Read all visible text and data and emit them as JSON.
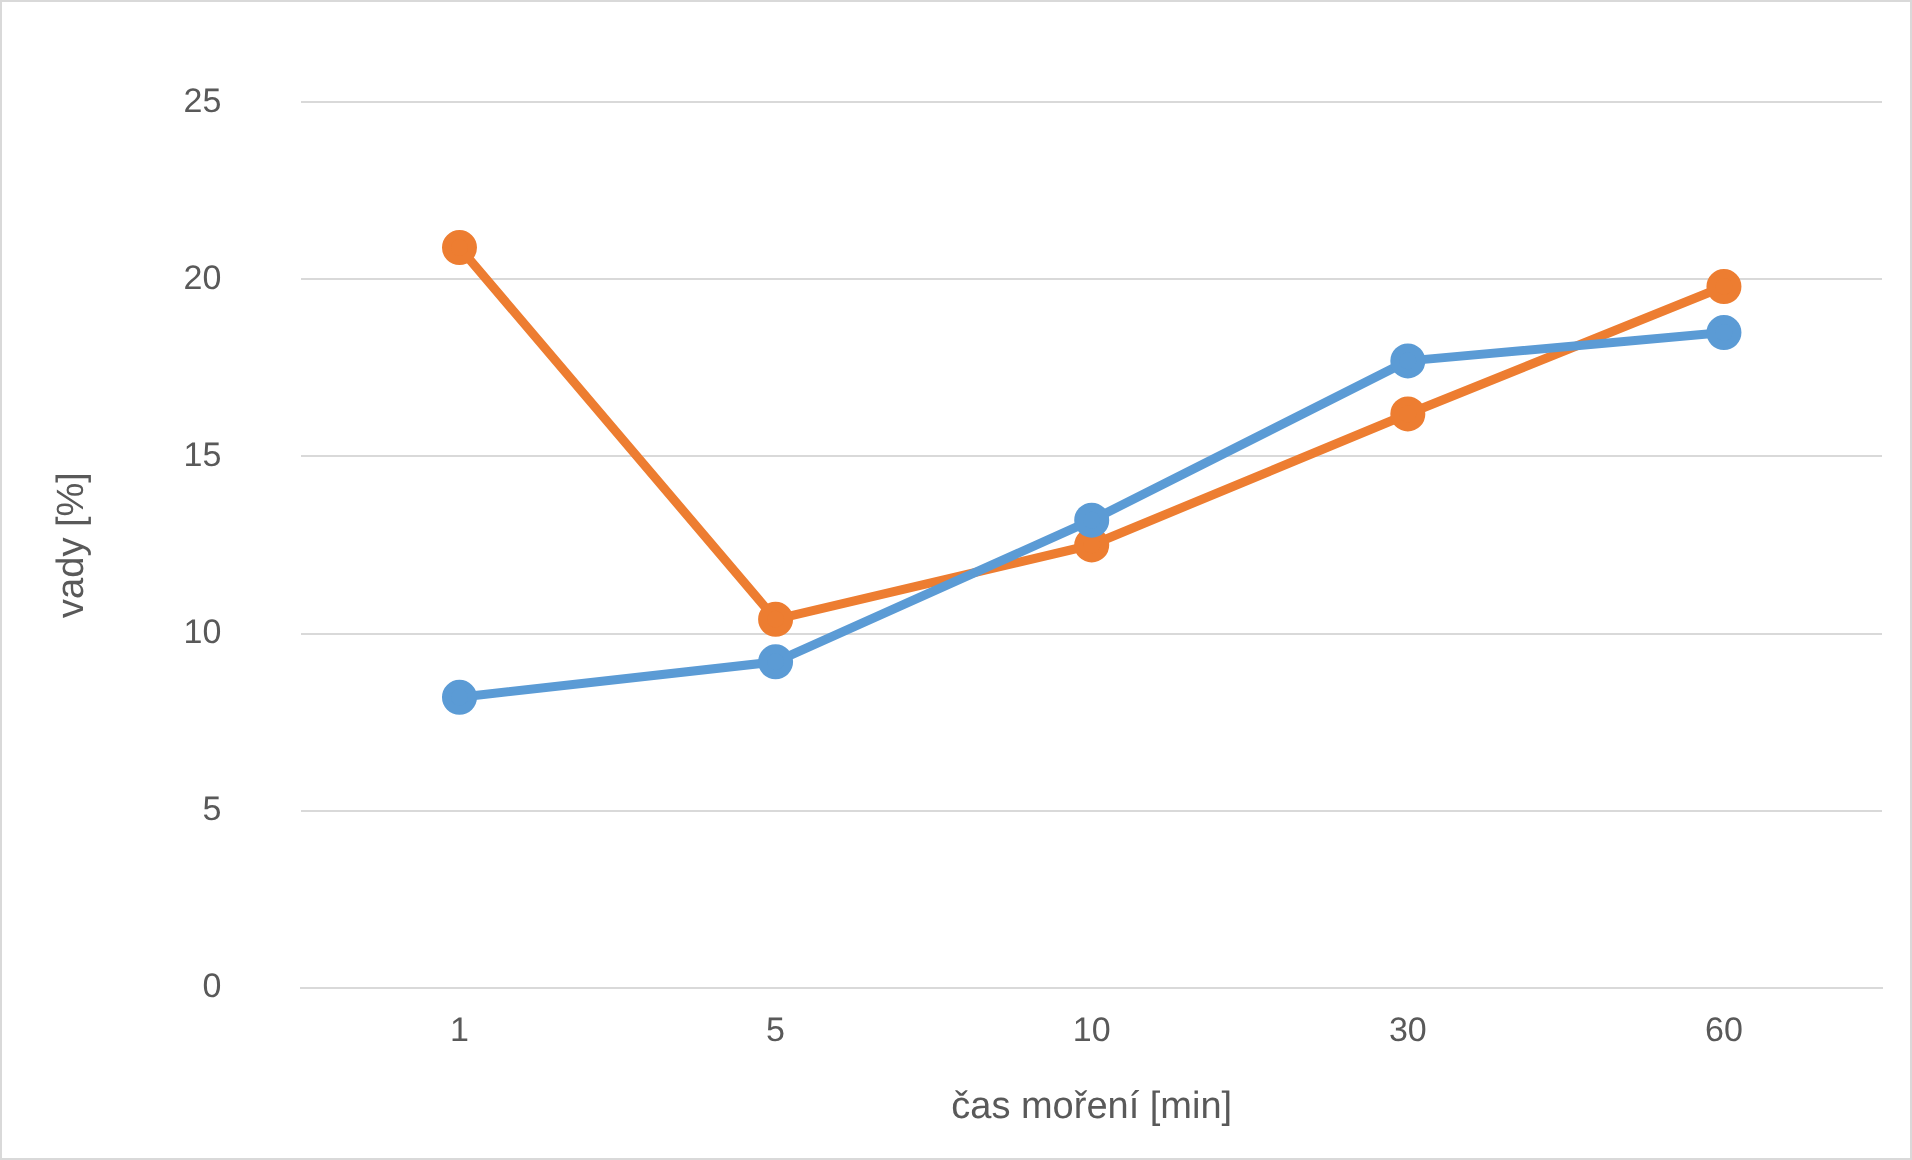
{
  "chart_data": {
    "type": "line",
    "xlabel": "čas moření [min]",
    "ylabel": "vady [%]",
    "categories": [
      "1",
      "5",
      "10",
      "30",
      "60"
    ],
    "series": [
      {
        "color": "#5b9bd5",
        "values": [
          8.2,
          9.2,
          13.2,
          17.7,
          18.5
        ]
      },
      {
        "color": "#ed7d31",
        "values": [
          20.9,
          10.4,
          12.5,
          16.2,
          19.8
        ]
      }
    ],
    "ylim": [
      0,
      25
    ],
    "yticks": [
      0,
      5,
      10,
      15,
      20,
      25
    ],
    "grid": "y",
    "legend": false,
    "marker": "circle",
    "line_style": "solid"
  }
}
